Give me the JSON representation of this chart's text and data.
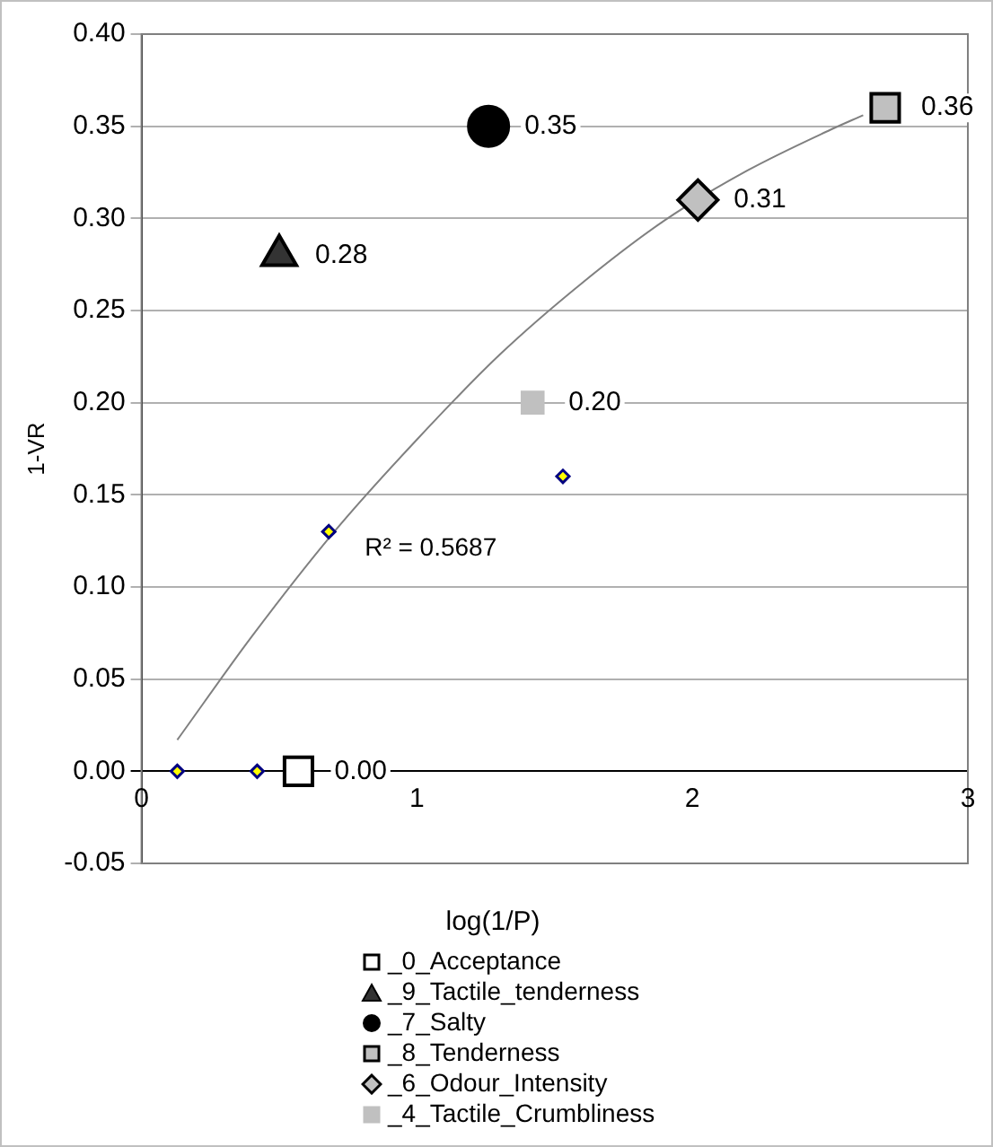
{
  "chart_data": {
    "type": "scatter",
    "xlabel": "log(1/P)",
    "ylabel": "1-VR",
    "xlim": [
      0,
      3
    ],
    "xticks": [
      0,
      1,
      2,
      3
    ],
    "ylim": [
      -0.05,
      0.4
    ],
    "yticks": [
      {
        "value": -0.05,
        "label": "-0.05"
      },
      {
        "value": 0,
        "label": "0.00"
      },
      {
        "value": 0.05,
        "label": "0.05"
      },
      {
        "value": 0.1,
        "label": "0.10"
      },
      {
        "value": 0.15,
        "label": "0.15"
      },
      {
        "value": 0.2,
        "label": "0.20"
      },
      {
        "value": 0.25,
        "label": "0.25"
      },
      {
        "value": 0.3,
        "label": "0.30"
      },
      {
        "value": 0.35,
        "label": "0.35"
      },
      {
        "value": 0.4,
        "label": "0.40"
      }
    ],
    "grid": "y",
    "legend": "bottom",
    "series": [
      {
        "type": "line",
        "color": "#808080",
        "marker": "none",
        "x": [
          0.13,
          0.4,
          0.7,
          1.0,
          1.3,
          1.6,
          1.9,
          2.2,
          2.5,
          2.62
        ],
        "values": [
          0.017,
          0.073,
          0.13,
          0.18,
          0.226,
          0.265,
          0.299,
          0.326,
          0.348,
          0.356
        ]
      },
      {
        "type": "scatter",
        "color": "#ffff00",
        "marker": "diamond",
        "x": [
          0.13,
          0.42,
          0.68,
          1.53
        ],
        "values": [
          0,
          0,
          0.13,
          0.16
        ]
      },
      {
        "name": "_0_Acceptance",
        "color": "#ffffff",
        "marker": "square",
        "x": [
          0.57
        ],
        "values": [
          0
        ],
        "value_labels": [
          "0.00"
        ]
      },
      {
        "name": "_9_Tactile_tenderness",
        "color": "#333333",
        "marker": "triangle",
        "x": [
          0.5
        ],
        "values": [
          0.28
        ],
        "value_labels": [
          "0.28"
        ]
      },
      {
        "name": "_7_Salty",
        "color": "#000000",
        "marker": "circle",
        "x": [
          1.26
        ],
        "values": [
          0.35
        ],
        "value_labels": [
          "0.35"
        ]
      },
      {
        "name": "_8_Tenderness",
        "color": "#c0c0c0",
        "marker": "square",
        "x": [
          2.7
        ],
        "values": [
          0.36
        ],
        "value_labels": [
          "0.36"
        ]
      },
      {
        "name": "_6_Odour_Intensity",
        "color": "#c0c0c0",
        "marker": "diamond",
        "x": [
          2.02
        ],
        "values": [
          0.31
        ],
        "value_labels": [
          "0.31"
        ]
      },
      {
        "name": "_4_Tactile_Crumbliness",
        "color": "#c0c0c0",
        "marker": "square",
        "x": [
          1.42
        ],
        "values": [
          0.2
        ],
        "value_labels": [
          "0.20"
        ]
      }
    ],
    "annotations": [
      "R² = 0.5687"
    ]
  }
}
